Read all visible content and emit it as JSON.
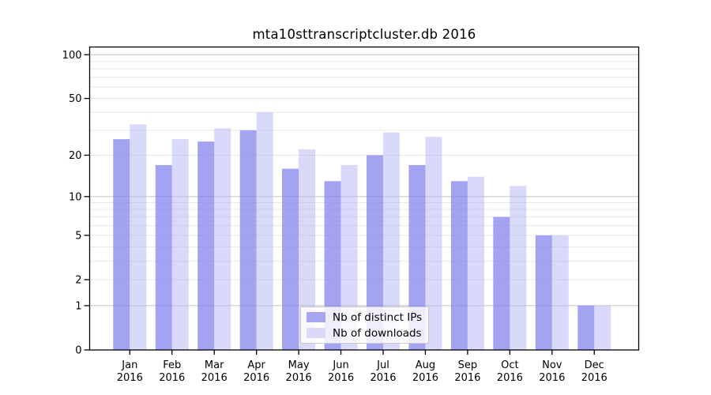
{
  "chart_data": {
    "type": "bar",
    "title": "mta10sttranscriptcluster.db 2016",
    "scale": "log10(1+x)",
    "grid": true,
    "categories": [
      "Jan",
      "Feb",
      "Mar",
      "Apr",
      "May",
      "Jun",
      "Jul",
      "Aug",
      "Sep",
      "Oct",
      "Nov",
      "Dec"
    ],
    "x_year_label": "2016",
    "series": [
      {
        "name": "Nb of distinct IPs",
        "swatch_color": "#a6a6f1",
        "fill_rgba": "rgba(128,128,236,0.72)",
        "values": [
          26,
          17,
          25,
          30,
          16,
          13,
          20,
          17,
          13,
          7,
          5,
          1
        ]
      },
      {
        "name": "Nb of downloads",
        "swatch_color": "#dadaf8",
        "fill_rgba": "rgba(183,183,243,0.52)",
        "values": [
          33,
          26,
          31,
          40,
          22,
          17,
          29,
          27,
          14,
          12,
          5,
          1
        ]
      }
    ],
    "ytick_labels": [
      "100",
      "50",
      "20",
      "10",
      "5",
      "2",
      "1",
      "0"
    ],
    "ytick_values": [
      100,
      50,
      20,
      10,
      5,
      2,
      1,
      0
    ],
    "major_gridlines": [
      1,
      10,
      100
    ],
    "minor_gridlines": [
      2,
      3,
      4,
      5,
      6,
      7,
      8,
      9,
      20,
      30,
      40,
      50,
      60,
      70,
      80,
      90
    ],
    "ylim": [
      0,
      112
    ],
    "legend_position": "bottom-center",
    "colors": {
      "major_grid": "#c3c3c3",
      "minor_grid": "#e9e9e9",
      "spine": "#000000",
      "text": "#000000"
    }
  }
}
